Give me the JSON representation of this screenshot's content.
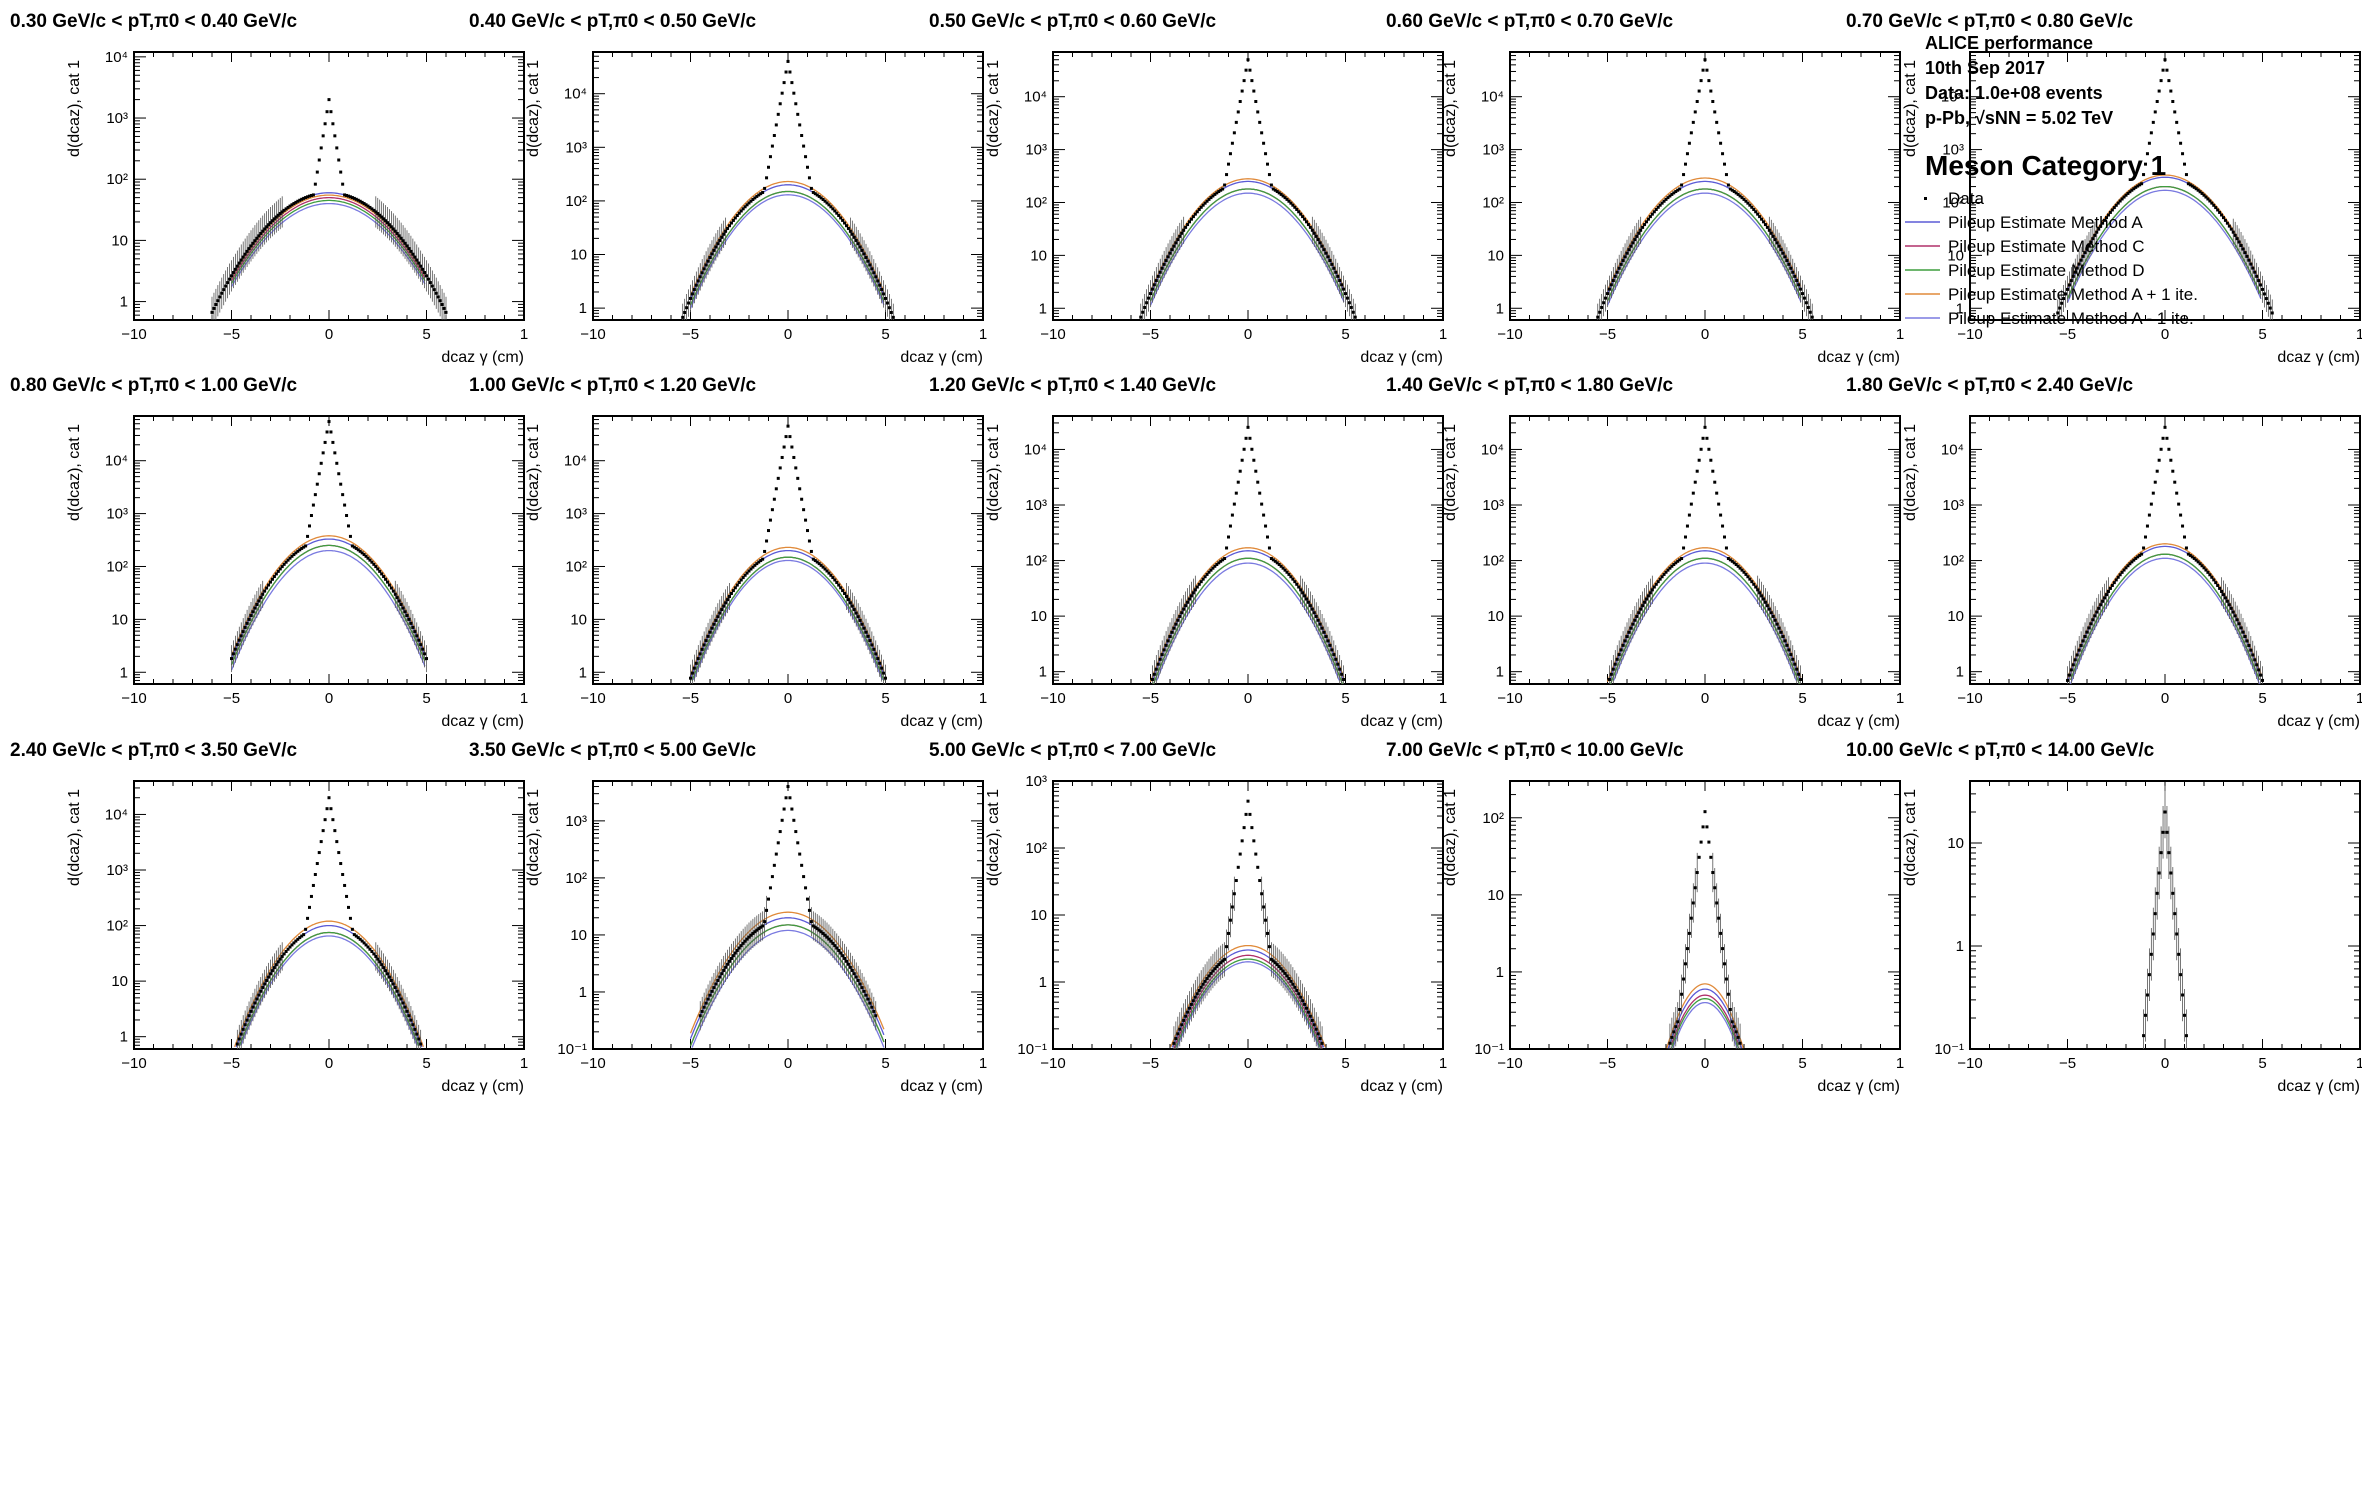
{
  "figure": {
    "info": [
      "ALICE performance",
      "10th Sep 2017",
      "Data: 1.0e+08 events",
      "p-Pb, √sNN = 5.02 TeV"
    ],
    "category_title": "Meson Category 1"
  },
  "legend": [
    {
      "label": "Data",
      "color": "#000000",
      "style": "marker"
    },
    {
      "label": "Pileup Estimate Method A",
      "color": "#5b5bd6",
      "style": "line"
    },
    {
      "label": "Pileup Estimate Method C",
      "color": "#b0306a",
      "style": "line"
    },
    {
      "label": "Pileup Estimate Method D",
      "color": "#3f9e3f",
      "style": "line"
    },
    {
      "label": "Pileup Estimate Method A + 1 ite.",
      "color": "#e08a3a",
      "style": "line"
    },
    {
      "label": "Pileup Estimate Method A - 1 ite.",
      "color": "#7a7ae0",
      "style": "line"
    }
  ],
  "chart_data": [
    {
      "type": "scatter",
      "title": "0.30 GeV/c < pT,π0 < 0.40 GeV/c",
      "pt_low": "0.30",
      "pt_high": "0.40",
      "xlabel": "dcaz γ (cm)",
      "ylabel": "d(dcaz), cat 1",
      "xlim": [
        -10,
        10
      ],
      "ylim": [
        0.5,
        12000
      ],
      "log_y": true,
      "y_ticks": [
        1,
        10,
        100,
        1000,
        10000
      ],
      "peak": 2000,
      "fit_amplitudes": [
        60,
        50,
        45,
        55,
        40
      ],
      "fit_sigma": 2.0,
      "tail_width": 6.0
    },
    {
      "type": "scatter",
      "title": "0.40 GeV/c < pT,π0 < 0.50 GeV/c",
      "pt_low": "0.40",
      "pt_high": "0.50",
      "xlabel": "dcaz γ (cm)",
      "ylabel": "d(dcaz), cat 1",
      "xlim": [
        -10,
        10
      ],
      "ylim": [
        0.6,
        60000
      ],
      "log_y": true,
      "y_ticks": [
        1,
        10,
        100,
        1000,
        10000
      ],
      "peak": 40000,
      "fit_amplitudes": [
        200,
        150,
        150,
        230,
        130
      ],
      "fit_sigma": 1.6,
      "tail_width": 5.5
    },
    {
      "type": "scatter",
      "title": "0.50 GeV/c < pT,π0 < 0.60 GeV/c",
      "pt_low": "0.50",
      "pt_high": "0.60",
      "xlabel": "dcaz γ (cm)",
      "ylabel": "d(dcaz), cat 1",
      "xlim": [
        -10,
        10
      ],
      "ylim": [
        0.6,
        70000
      ],
      "log_y": true,
      "y_ticks": [
        1,
        10,
        100,
        1000,
        10000
      ],
      "peak": 50000,
      "fit_amplitudes": [
        250,
        180,
        180,
        280,
        150
      ],
      "fit_sigma": 1.6,
      "tail_width": 5.5
    },
    {
      "type": "scatter",
      "title": "0.60 GeV/c < pT,π0 < 0.70 GeV/c",
      "pt_low": "0.60",
      "pt_high": "0.70",
      "xlabel": "dcaz γ (cm)",
      "ylabel": "d(dcaz), cat 1",
      "xlim": [
        -10,
        10
      ],
      "ylim": [
        0.6,
        70000
      ],
      "log_y": true,
      "y_ticks": [
        1,
        10,
        100,
        1000,
        10000
      ],
      "peak": 50000,
      "fit_amplitudes": [
        250,
        180,
        180,
        290,
        150
      ],
      "fit_sigma": 1.6,
      "tail_width": 5.5
    },
    {
      "type": "scatter",
      "title": "0.70 GeV/c < pT,π0 < 0.80 GeV/c",
      "pt_low": "0.70",
      "pt_high": "0.80",
      "xlabel": "dcaz γ (cm)",
      "ylabel": "d(dcaz), cat 1",
      "xlim": [
        -10,
        10
      ],
      "ylim": [
        0.6,
        70000
      ],
      "log_y": true,
      "y_ticks": [
        1,
        10,
        100,
        1000,
        10000
      ],
      "peak": 50000,
      "fit_amplitudes": [
        300,
        200,
        200,
        330,
        170
      ],
      "fit_sigma": 1.6,
      "tail_width": 5.5
    },
    {
      "type": "scatter",
      "title": "0.80 GeV/c < pT,π0 < 1.00 GeV/c",
      "pt_low": "0.80",
      "pt_high": "1.00",
      "xlabel": "dcaz γ (cm)",
      "ylabel": "d(dcaz), cat 1",
      "xlim": [
        -10,
        10
      ],
      "ylim": [
        0.6,
        70000
      ],
      "log_y": true,
      "y_ticks": [
        1,
        10,
        100,
        1000,
        10000
      ],
      "peak": 55000,
      "fit_amplitudes": [
        330,
        250,
        250,
        380,
        200
      ],
      "fit_sigma": 1.55,
      "tail_width": 5.0
    },
    {
      "type": "scatter",
      "title": "1.00 GeV/c < pT,π0 < 1.20 GeV/c",
      "pt_low": "1.00",
      "pt_high": "1.20",
      "xlabel": "dcaz γ (cm)",
      "ylabel": "d(dcaz), cat 1",
      "xlim": [
        -10,
        10
      ],
      "ylim": [
        0.6,
        70000
      ],
      "log_y": true,
      "y_ticks": [
        1,
        10,
        100,
        1000,
        10000
      ],
      "peak": 45000,
      "fit_amplitudes": [
        200,
        150,
        150,
        230,
        130
      ],
      "fit_sigma": 1.5,
      "tail_width": 5.0
    },
    {
      "type": "scatter",
      "title": "1.20 GeV/c < pT,π0 < 1.40 GeV/c",
      "pt_low": "1.20",
      "pt_high": "1.40",
      "xlabel": "dcaz γ (cm)",
      "ylabel": "d(dcaz), cat 1",
      "xlim": [
        -10,
        10
      ],
      "ylim": [
        0.6,
        40000
      ],
      "log_y": true,
      "y_ticks": [
        1,
        10,
        100,
        1000,
        10000
      ],
      "peak": 25000,
      "fit_amplitudes": [
        150,
        110,
        110,
        170,
        90
      ],
      "fit_sigma": 1.5,
      "tail_width": 5.0
    },
    {
      "type": "scatter",
      "title": "1.40 GeV/c < pT,π0 < 1.80 GeV/c",
      "pt_low": "1.40",
      "pt_high": "1.80",
      "xlabel": "dcaz γ (cm)",
      "ylabel": "d(dcaz), cat 1",
      "xlim": [
        -10,
        10
      ],
      "ylim": [
        0.6,
        40000
      ],
      "log_y": true,
      "y_ticks": [
        1,
        10,
        100,
        1000,
        10000
      ],
      "peak": 25000,
      "fit_amplitudes": [
        150,
        110,
        110,
        170,
        90
      ],
      "fit_sigma": 1.5,
      "tail_width": 5.0
    },
    {
      "type": "scatter",
      "title": "1.80 GeV/c < pT,π0 < 2.40 GeV/c",
      "pt_low": "1.80",
      "pt_high": "2.40",
      "xlabel": "dcaz γ (cm)",
      "ylabel": "d(dcaz), cat 1",
      "xlim": [
        -10,
        10
      ],
      "ylim": [
        0.6,
        40000
      ],
      "log_y": true,
      "y_ticks": [
        1,
        10,
        100,
        1000,
        10000
      ],
      "peak": 25000,
      "fit_amplitudes": [
        180,
        130,
        130,
        200,
        110
      ],
      "fit_sigma": 1.5,
      "tail_width": 5.0
    },
    {
      "type": "scatter",
      "title": "2.40 GeV/c < pT,π0 < 3.50 GeV/c",
      "pt_low": "2.40",
      "pt_high": "3.50",
      "xlabel": "dcaz γ (cm)",
      "ylabel": "d(dcaz), cat 1",
      "xlim": [
        -10,
        10
      ],
      "ylim": [
        0.6,
        40000
      ],
      "log_y": true,
      "y_ticks": [
        1,
        10,
        100,
        1000,
        10000
      ],
      "peak": 20000,
      "fit_amplitudes": [
        100,
        75,
        75,
        120,
        65
      ],
      "fit_sigma": 1.5,
      "tail_width": 5.0
    },
    {
      "type": "scatter",
      "title": "3.50 GeV/c < pT,π0 < 5.00 GeV/c",
      "pt_low": "3.50",
      "pt_high": "5.00",
      "xlabel": "dcaz γ (cm)",
      "ylabel": "d(dcaz), cat 1",
      "xlim": [
        -10,
        10
      ],
      "ylim": [
        0.1,
        5000
      ],
      "log_y": true,
      "y_ticks": [
        0.1,
        1,
        10,
        100,
        1000
      ],
      "peak": 4000,
      "fit_amplitudes": [
        20,
        15,
        15,
        25,
        12
      ],
      "fit_sigma": 1.6,
      "tail_width": 4.5
    },
    {
      "type": "scatter",
      "title": "5.00 GeV/c < pT,π0 < 7.00 GeV/c",
      "pt_low": "5.00",
      "pt_high": "7.00",
      "xlabel": "dcaz γ (cm)",
      "ylabel": "d(dcaz), cat 1",
      "xlim": [
        -10,
        10
      ],
      "ylim": [
        0.1,
        1000
      ],
      "log_y": true,
      "y_ticks": [
        0.1,
        1,
        10,
        100,
        1000
      ],
      "peak": 500,
      "fit_amplitudes": [
        3,
        2.5,
        2.2,
        3.5,
        2
      ],
      "fit_sigma": 1.5,
      "tail_width": 4.0
    },
    {
      "type": "scatter",
      "title": "7.00 GeV/c < pT,π0 < 10.00 GeV/c",
      "pt_low": "7.00",
      "pt_high": "10.00",
      "xlabel": "dcaz γ (cm)",
      "ylabel": "d(dcaz), cat 1",
      "xlim": [
        -10,
        10
      ],
      "ylim": [
        0.1,
        300
      ],
      "log_y": true,
      "y_ticks": [
        0.1,
        1,
        10,
        100
      ],
      "peak": 120,
      "fit_amplitudes": [
        0.6,
        0.5,
        0.45,
        0.7,
        0.4
      ],
      "fit_sigma": 1.0,
      "tail_width": 3.0
    },
    {
      "type": "scatter",
      "title": "10.00 GeV/c < pT,π0 < 14.00 GeV/c",
      "pt_low": "10.00",
      "pt_high": "14.00",
      "xlabel": "dcaz γ (cm)",
      "ylabel": "d(dcaz), cat 1",
      "xlim": [
        -10,
        10
      ],
      "ylim": [
        0.1,
        40
      ],
      "log_y": true,
      "y_ticks": [
        0.1,
        1,
        10
      ],
      "peak": 20,
      "fit_amplitudes": [],
      "fit_sigma": 1.0,
      "tail_width": 1.5
    }
  ]
}
